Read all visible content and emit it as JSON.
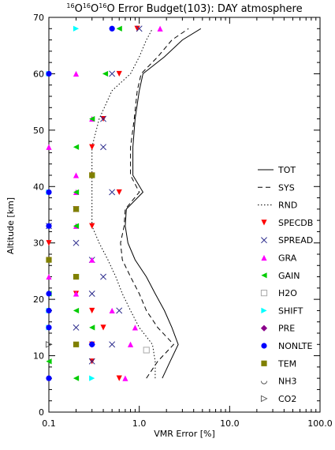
{
  "chart_data": {
    "type": "scatter",
    "title_isotope_top": "16",
    "title_o": "O",
    "title_rest": " Error Budget(103): DAY atmosphere",
    "xlabel": "VMR Error [%]",
    "ylabel": "Altitude [km]",
    "xscale": "log",
    "xlim": [
      0.1,
      100
    ],
    "ylim": [
      0,
      70
    ],
    "x_ticks": [
      {
        "value": 0.1,
        "label": "0.1"
      },
      {
        "value": 1,
        "label": "1.0"
      },
      {
        "value": 10,
        "label": "10.0"
      },
      {
        "value": 100,
        "label": "100.0"
      }
    ],
    "y_ticks": [
      {
        "value": 0,
        "label": "0"
      },
      {
        "value": 10,
        "label": "10"
      },
      {
        "value": 20,
        "label": "20"
      },
      {
        "value": 30,
        "label": "30"
      },
      {
        "value": 40,
        "label": "40"
      },
      {
        "value": 50,
        "label": "50"
      },
      {
        "value": 60,
        "label": "60"
      },
      {
        "value": 70,
        "label": "70"
      }
    ],
    "grid": false,
    "legend_position": "right",
    "lines": [
      {
        "name": "TOT",
        "dash": "solid",
        "color": "#000000",
        "points": [
          [
            1.8,
            6
          ],
          [
            2.2,
            9
          ],
          [
            2.7,
            12
          ],
          [
            2.3,
            15
          ],
          [
            1.9,
            18
          ],
          [
            1.5,
            21
          ],
          [
            1.2,
            24
          ],
          [
            0.9,
            27
          ],
          [
            0.75,
            30
          ],
          [
            0.7,
            33
          ],
          [
            0.72,
            36
          ],
          [
            1.1,
            39
          ],
          [
            0.85,
            42
          ],
          [
            0.85,
            47
          ],
          [
            0.9,
            52
          ],
          [
            1.0,
            57
          ],
          [
            1.1,
            60
          ],
          [
            1.9,
            63
          ],
          [
            3.0,
            66
          ],
          [
            4.8,
            68
          ]
        ]
      },
      {
        "name": "SYS",
        "dash": "dashed",
        "color": "#000000",
        "points": [
          [
            1.2,
            6
          ],
          [
            1.6,
            9
          ],
          [
            2.4,
            12
          ],
          [
            1.6,
            15
          ],
          [
            1.2,
            18
          ],
          [
            1.0,
            21
          ],
          [
            0.8,
            24
          ],
          [
            0.65,
            27
          ],
          [
            0.62,
            30
          ],
          [
            0.68,
            33
          ],
          [
            0.7,
            36
          ],
          [
            1.0,
            39
          ],
          [
            0.8,
            42
          ],
          [
            0.8,
            47
          ],
          [
            0.88,
            52
          ],
          [
            0.95,
            57
          ],
          [
            1.05,
            60
          ],
          [
            1.6,
            63
          ],
          [
            2.3,
            66
          ],
          [
            3.5,
            68
          ]
        ]
      },
      {
        "name": "RND",
        "dash": "dotted",
        "color": "#000000",
        "points": [
          [
            1.5,
            6
          ],
          [
            1.5,
            9
          ],
          [
            1.4,
            12
          ],
          [
            1.0,
            15
          ],
          [
            0.8,
            18
          ],
          [
            0.65,
            21
          ],
          [
            0.55,
            24
          ],
          [
            0.45,
            27
          ],
          [
            0.36,
            30
          ],
          [
            0.3,
            33
          ],
          [
            0.3,
            36
          ],
          [
            0.3,
            39
          ],
          [
            0.3,
            42
          ],
          [
            0.3,
            47
          ],
          [
            0.36,
            52
          ],
          [
            0.5,
            57
          ],
          [
            0.8,
            60
          ],
          [
            1.0,
            63
          ],
          [
            1.2,
            66
          ],
          [
            1.4,
            68
          ]
        ]
      }
    ],
    "series": [
      {
        "name": "SPECDB",
        "marker": "triangle-down",
        "color": "#ff0000",
        "points": [
          [
            0.95,
            68
          ],
          [
            0.6,
            60
          ],
          [
            0.4,
            52
          ],
          [
            0.3,
            47
          ],
          [
            0.3,
            42
          ],
          [
            0.6,
            39
          ],
          [
            0.2,
            36
          ],
          [
            0.3,
            33
          ],
          [
            0.1,
            30
          ],
          [
            0.1,
            27
          ],
          [
            0.2,
            24
          ],
          [
            0.2,
            21
          ],
          [
            0.3,
            18
          ],
          [
            0.4,
            15
          ],
          [
            0.3,
            12
          ],
          [
            0.3,
            9
          ],
          [
            0.6,
            6
          ]
        ]
      },
      {
        "name": "SPREAD",
        "marker": "x",
        "color": "#2b2b8c",
        "points": [
          [
            1.0,
            68
          ],
          [
            0.5,
            60
          ],
          [
            0.4,
            52
          ],
          [
            0.4,
            47
          ],
          [
            0.5,
            39
          ],
          [
            0.2,
            36
          ],
          [
            0.1,
            33
          ],
          [
            0.2,
            30
          ],
          [
            0.3,
            27
          ],
          [
            0.4,
            24
          ],
          [
            0.3,
            21
          ],
          [
            0.6,
            18
          ],
          [
            0.2,
            15
          ],
          [
            0.5,
            12
          ],
          [
            0.3,
            9
          ]
        ]
      },
      {
        "name": "GRA",
        "marker": "triangle-up",
        "color": "#ff00ff",
        "points": [
          [
            1.7,
            68
          ],
          [
            0.2,
            60
          ],
          [
            0.3,
            52
          ],
          [
            0.1,
            47
          ],
          [
            0.2,
            42
          ],
          [
            0.2,
            39
          ],
          [
            0.2,
            36
          ],
          [
            0.2,
            33
          ],
          [
            0.3,
            27
          ],
          [
            0.1,
            24
          ],
          [
            0.2,
            21
          ],
          [
            0.5,
            18
          ],
          [
            0.9,
            15
          ],
          [
            0.8,
            12
          ],
          [
            0.7,
            6
          ]
        ]
      },
      {
        "name": "GAIN",
        "marker": "triangle-left",
        "color": "#00cc00",
        "points": [
          [
            0.6,
            68
          ],
          [
            0.42,
            60
          ],
          [
            0.3,
            52
          ],
          [
            0.2,
            47
          ],
          [
            0.3,
            42
          ],
          [
            0.2,
            39
          ],
          [
            0.2,
            36
          ],
          [
            0.2,
            33
          ],
          [
            0.2,
            24
          ],
          [
            0.1,
            21
          ],
          [
            0.2,
            18
          ],
          [
            0.3,
            15
          ],
          [
            0.2,
            12
          ],
          [
            0.1,
            9
          ],
          [
            0.2,
            6
          ]
        ]
      },
      {
        "name": "H2O",
        "marker": "square-open",
        "color": "#aaaaaa",
        "points": [
          [
            1.2,
            11
          ]
        ]
      },
      {
        "name": "SHIFT",
        "marker": "triangle-right",
        "color": "#00ffff",
        "points": [
          [
            0.2,
            68
          ],
          [
            0.1,
            60
          ],
          [
            0.1,
            39
          ],
          [
            0.1,
            18
          ],
          [
            0.1,
            15
          ],
          [
            0.3,
            6
          ]
        ]
      },
      {
        "name": "PRE",
        "marker": "diamond",
        "color": "#8b008b",
        "points": [
          [
            0.3,
            12
          ]
        ]
      },
      {
        "name": "NONLTE",
        "marker": "circle",
        "color": "#0000ff",
        "points": [
          [
            0.5,
            68
          ],
          [
            0.1,
            60
          ],
          [
            0.1,
            39
          ],
          [
            0.1,
            33
          ],
          [
            0.1,
            21
          ],
          [
            0.1,
            18
          ],
          [
            0.1,
            15
          ],
          [
            0.3,
            12
          ],
          [
            0.1,
            6
          ]
        ]
      },
      {
        "name": "TEM",
        "marker": "square",
        "color": "#808000",
        "points": [
          [
            0.3,
            42
          ],
          [
            0.2,
            36
          ],
          [
            0.1,
            27
          ],
          [
            0.2,
            24
          ],
          [
            0.2,
            12
          ]
        ]
      },
      {
        "name": "NH3",
        "marker": "half-circle",
        "color": "#555555",
        "points": []
      },
      {
        "name": "CO2",
        "marker": "triangle-right-open",
        "color": "#555555",
        "points": [
          [
            0.1,
            12
          ]
        ]
      }
    ],
    "legend_items": [
      {
        "label": "TOT",
        "kind": "line",
        "dash": "solid"
      },
      {
        "label": "SYS",
        "kind": "line",
        "dash": "dashed"
      },
      {
        "label": "RND",
        "kind": "line",
        "dash": "dotted"
      },
      {
        "label": "SPECDB",
        "kind": "marker",
        "marker": "triangle-down",
        "color": "#ff0000"
      },
      {
        "label": "SPREAD",
        "kind": "marker",
        "marker": "x",
        "color": "#2b2b8c"
      },
      {
        "label": "GRA",
        "kind": "marker",
        "marker": "triangle-up",
        "color": "#ff00ff"
      },
      {
        "label": "GAIN",
        "kind": "marker",
        "marker": "triangle-left",
        "color": "#00cc00"
      },
      {
        "label": "H2O",
        "kind": "marker",
        "marker": "square-open",
        "color": "#aaaaaa"
      },
      {
        "label": "SHIFT",
        "kind": "marker",
        "marker": "triangle-right",
        "color": "#00ffff"
      },
      {
        "label": "PRE",
        "kind": "marker",
        "marker": "diamond",
        "color": "#8b008b"
      },
      {
        "label": "NONLTE",
        "kind": "marker",
        "marker": "circle",
        "color": "#0000ff"
      },
      {
        "label": "TEM",
        "kind": "marker",
        "marker": "square",
        "color": "#808000"
      },
      {
        "label": "NH3",
        "kind": "marker",
        "marker": "half-circle",
        "color": "#555555"
      },
      {
        "label": "CO2",
        "kind": "marker",
        "marker": "triangle-right-open",
        "color": "#555555"
      }
    ]
  }
}
